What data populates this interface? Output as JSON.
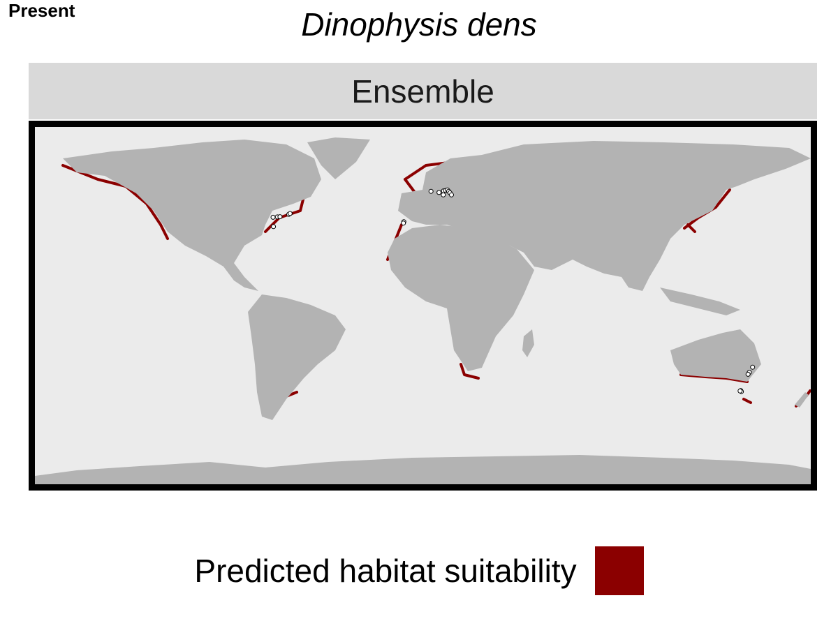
{
  "header": {
    "period": "Present",
    "species": "Dinophysis dens"
  },
  "facet": {
    "label": "Ensemble"
  },
  "legend": {
    "title": "Predicted habitat suitability",
    "swatch_color": "#8b0000"
  },
  "colors": {
    "ocean": "#ebebeb",
    "land": "#b3b3b3",
    "suitability": "#8b0000",
    "panel_border": "#000000",
    "strip": "#d9d9d9",
    "occurrence_fill": "#ffffff",
    "occurrence_stroke": "#000000"
  },
  "map": {
    "projection": "equirectangular",
    "extent": {
      "lon": [
        -180,
        180
      ],
      "lat": [
        -90,
        90
      ]
    },
    "occurrence_points": [
      {
        "region": "Gulf of Maine / Nova Scotia",
        "lon": -69.5,
        "lat": 44.5
      },
      {
        "region": "Gulf of Maine / Nova Scotia",
        "lon": -67.5,
        "lat": 44.7
      },
      {
        "region": "Gulf of Maine / Nova Scotia",
        "lon": -66.3,
        "lat": 44.8
      },
      {
        "region": "Gulf of Maine / Nova Scotia",
        "lon": -62.2,
        "lat": 46.0
      },
      {
        "region": "Gulf of Maine / Nova Scotia",
        "lon": -61.6,
        "lat": 46.4
      },
      {
        "region": "Gulf of Maine / Nova Scotia",
        "lon": -69.3,
        "lat": 39.8
      },
      {
        "region": "Galicia",
        "lon": -8.8,
        "lat": 42.3
      },
      {
        "region": "Galicia",
        "lon": -9.0,
        "lat": 41.6
      },
      {
        "region": "Skagerrak / Kattegat",
        "lon": 3.8,
        "lat": 57.6
      },
      {
        "region": "Skagerrak / Kattegat",
        "lon": 7.5,
        "lat": 57.0
      },
      {
        "region": "Skagerrak / Kattegat",
        "lon": 9.6,
        "lat": 57.8
      },
      {
        "region": "Skagerrak / Kattegat",
        "lon": 10.6,
        "lat": 58.0
      },
      {
        "region": "Skagerrak / Kattegat",
        "lon": 11.4,
        "lat": 58.3
      },
      {
        "region": "Skagerrak / Kattegat",
        "lon": 12.0,
        "lat": 57.6
      },
      {
        "region": "Skagerrak / Kattegat",
        "lon": 12.6,
        "lat": 56.8
      },
      {
        "region": "Skagerrak / Kattegat",
        "lon": 13.3,
        "lat": 55.8
      },
      {
        "region": "Skagerrak / Kattegat",
        "lon": 9.5,
        "lat": 55.8
      },
      {
        "region": "SE Australia",
        "lon": 153.0,
        "lat": -31.0
      },
      {
        "region": "SE Australia",
        "lon": 151.5,
        "lat": -33.6
      },
      {
        "region": "SE Australia",
        "lon": 150.9,
        "lat": -34.6
      },
      {
        "region": "SE Australia",
        "lon": 147.5,
        "lat": -42.8
      },
      {
        "region": "SE Australia",
        "lon": 147.8,
        "lat": -43.3
      },
      {
        "region": "SE Australia",
        "lon": 147.2,
        "lat": -43.0
      }
    ]
  }
}
